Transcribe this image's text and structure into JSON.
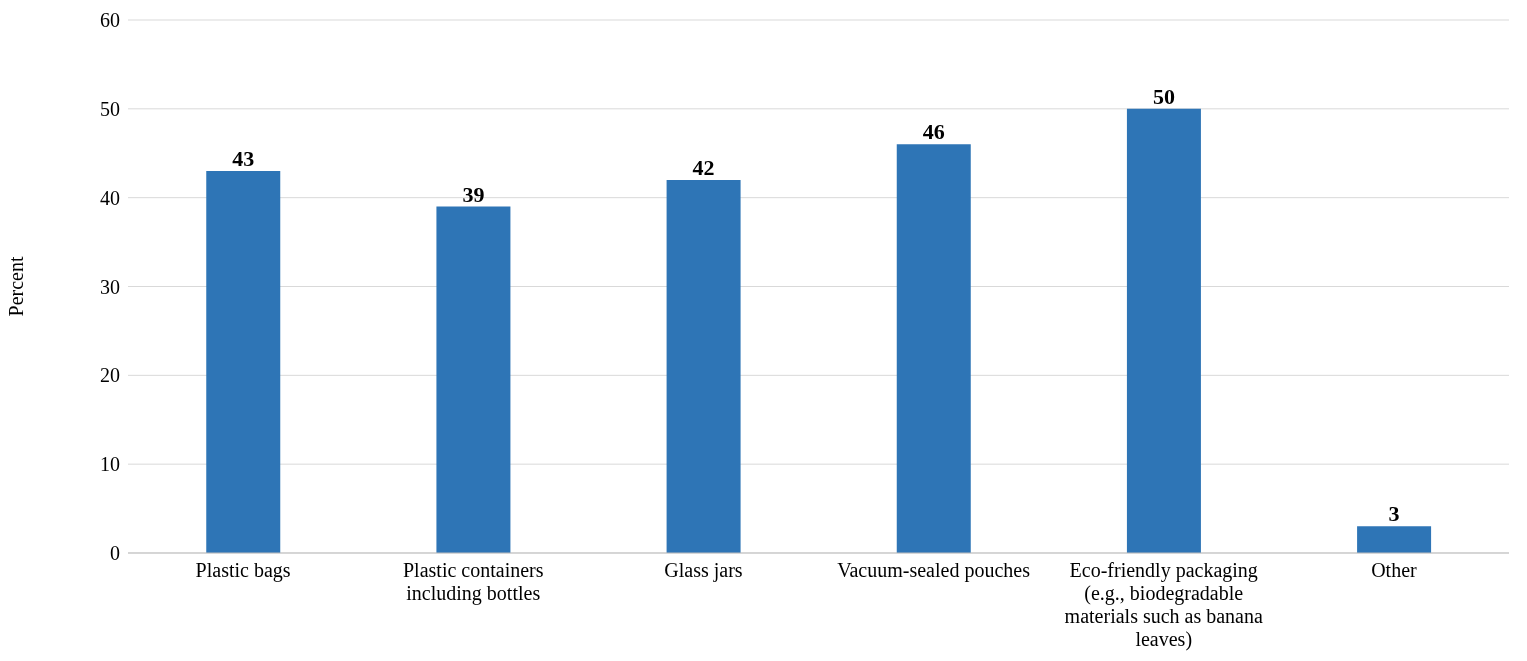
{
  "chart_data": {
    "type": "bar",
    "ylabel": "Percent",
    "categories": [
      "Plastic bags",
      "Plastic containers including bottles",
      "Glass jars",
      "Vacuum-sealed pouches",
      "Eco-friendly packaging (e.g., biodegradable materials such as banana leaves)",
      "Other"
    ],
    "values": [
      43,
      39,
      42,
      46,
      50,
      3
    ],
    "color": "#2e75b6",
    "ylim": [
      0,
      60
    ],
    "yticks": [
      0,
      10,
      20,
      30,
      40,
      50,
      60
    ],
    "grid": "y",
    "data_labels": true
  }
}
